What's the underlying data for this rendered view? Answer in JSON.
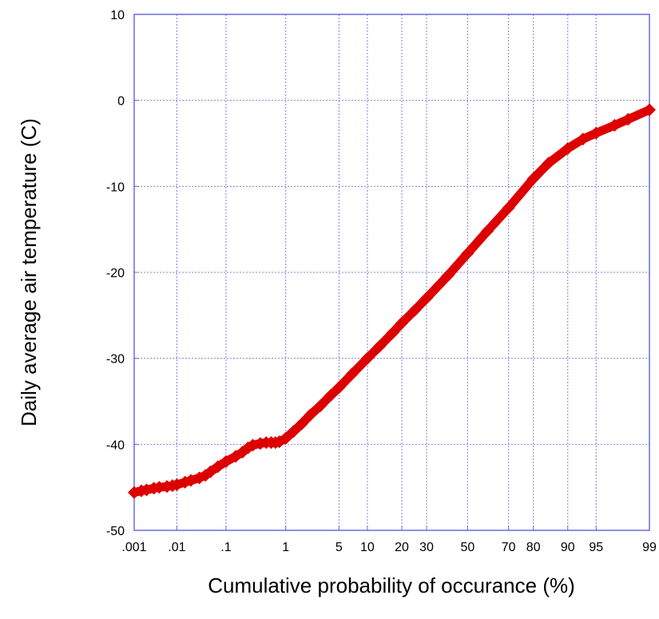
{
  "chart_data": {
    "type": "scatter",
    "title": "",
    "xlabel": "Cumulative probability of occurance (%)",
    "ylabel": "Daily average air temperature (C)",
    "x_scale": "normal-probability",
    "xlim": [
      0.001,
      99
    ],
    "ylim": [
      -50,
      10
    ],
    "x_ticks": [
      {
        "value": 0.001,
        "label": ".001"
      },
      {
        "value": 0.01,
        "label": ".01"
      },
      {
        "value": 0.1,
        "label": ".1"
      },
      {
        "value": 1,
        "label": "1"
      },
      {
        "value": 5,
        "label": "5"
      },
      {
        "value": 10,
        "label": "10"
      },
      {
        "value": 20,
        "label": "20"
      },
      {
        "value": 30,
        "label": "30"
      },
      {
        "value": 50,
        "label": "50"
      },
      {
        "value": 70,
        "label": "70"
      },
      {
        "value": 80,
        "label": "80"
      },
      {
        "value": 90,
        "label": "90"
      },
      {
        "value": 95,
        "label": "95"
      },
      {
        "value": 99,
        "label": "99"
      }
    ],
    "y_ticks": [
      {
        "value": 10,
        "label": "10"
      },
      {
        "value": 0,
        "label": "0"
      },
      {
        "value": -10,
        "label": "-10"
      },
      {
        "value": -20,
        "label": "-20"
      },
      {
        "value": -30,
        "label": "-30"
      },
      {
        "value": -40,
        "label": "-40"
      },
      {
        "value": -50,
        "label": "-50"
      }
    ],
    "grid": true,
    "colors": {
      "series": "#dd0000",
      "grid": "#8080e0",
      "frame": "#6a6ae0"
    },
    "series": [
      {
        "marker": "diamond",
        "points": [
          [
            0.001,
            -45.6
          ],
          [
            0.0015,
            -45.4
          ],
          [
            0.002,
            -45.3
          ],
          [
            0.003,
            -45.1
          ],
          [
            0.004,
            -45.0
          ],
          [
            0.006,
            -44.9
          ],
          [
            0.008,
            -44.8
          ],
          [
            0.01,
            -44.7
          ],
          [
            0.015,
            -44.4
          ],
          [
            0.02,
            -44.2
          ],
          [
            0.03,
            -43.9
          ],
          [
            0.04,
            -43.6
          ],
          [
            0.05,
            -43.2
          ],
          [
            0.07,
            -42.6
          ],
          [
            0.1,
            -42.0
          ],
          [
            0.15,
            -41.4
          ],
          [
            0.2,
            -40.9
          ],
          [
            0.25,
            -40.4
          ],
          [
            0.3,
            -40.1
          ],
          [
            0.4,
            -39.9
          ],
          [
            0.5,
            -39.8
          ],
          [
            0.6,
            -39.8
          ],
          [
            0.7,
            -39.8
          ],
          [
            0.8,
            -39.7
          ],
          [
            1.0,
            -39.3
          ],
          [
            1.3,
            -38.5
          ],
          [
            1.7,
            -37.6
          ],
          [
            2.2,
            -36.6
          ],
          [
            3.0,
            -35.5
          ],
          [
            4.0,
            -34.3
          ],
          [
            5.0,
            -33.4
          ],
          [
            7.0,
            -31.8
          ],
          [
            10.0,
            -30.0
          ],
          [
            13.0,
            -28.6
          ],
          [
            17.0,
            -27.0
          ],
          [
            20.0,
            -25.9
          ],
          [
            25.0,
            -24.4
          ],
          [
            30.0,
            -23.0
          ],
          [
            40.0,
            -20.4
          ],
          [
            50.0,
            -17.8
          ],
          [
            60.0,
            -15.2
          ],
          [
            70.0,
            -12.5
          ],
          [
            80.0,
            -9.1
          ],
          [
            85.0,
            -7.3
          ],
          [
            90.0,
            -5.6
          ],
          [
            93.0,
            -4.5
          ],
          [
            95.0,
            -3.8
          ],
          [
            97.0,
            -2.9
          ],
          [
            98.0,
            -2.2
          ],
          [
            99.0,
            -1.1
          ]
        ]
      }
    ]
  }
}
